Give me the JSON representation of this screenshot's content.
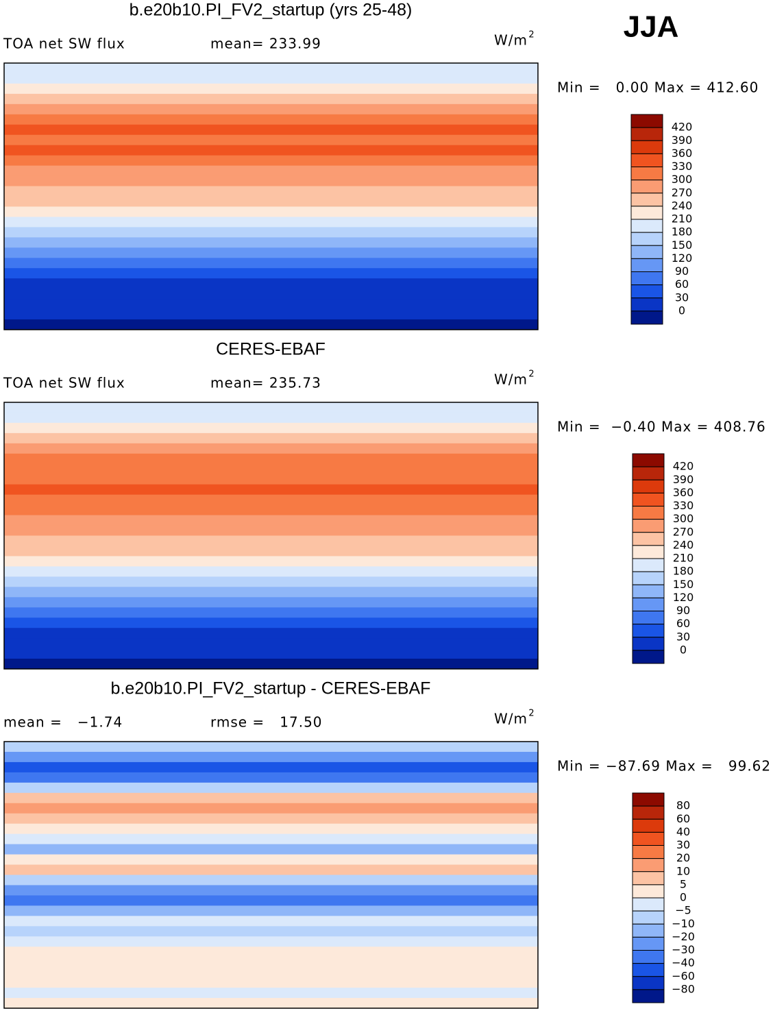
{
  "season": "JJA",
  "panels": [
    {
      "title": "b.e20b10.PI_FV2_startup (yrs 25-48)",
      "left": "TOA net SW flux",
      "center": "mean= 233.99",
      "units": "W/m",
      "units_exp": "2",
      "minmax": "Min =   0.00 Max = 412.60",
      "colorbar": {
        "labels": [
          "420",
          "390",
          "360",
          "330",
          "300",
          "270",
          "240",
          "210",
          "180",
          "150",
          "120",
          "90",
          "60",
          "30",
          "0"
        ],
        "colors": [
          "#8c0a00",
          "#b8260a",
          "#dc3a0c",
          "#f05420",
          "#f77a44",
          "#fa9c73",
          "#fcc3a4",
          "#fde9da",
          "#dbe9fb",
          "#b7d3fb",
          "#8fb6f8",
          "#6697f5",
          "#3f77f0",
          "#1a55e6",
          "#0a35c5",
          "#00188a"
        ]
      }
    },
    {
      "title": "CERES-EBAF",
      "left": "TOA net SW flux",
      "center": "mean= 235.73",
      "units": "W/m",
      "units_exp": "2",
      "minmax": "Min =  −0.40 Max = 408.76",
      "colorbar": {
        "labels": [
          "420",
          "390",
          "360",
          "330",
          "300",
          "270",
          "240",
          "210",
          "180",
          "150",
          "120",
          "90",
          "60",
          "30",
          "0"
        ],
        "colors": [
          "#8c0a00",
          "#b8260a",
          "#dc3a0c",
          "#f05420",
          "#f77a44",
          "#fa9c73",
          "#fcc3a4",
          "#fde9da",
          "#dbe9fb",
          "#b7d3fb",
          "#8fb6f8",
          "#6697f5",
          "#3f77f0",
          "#1a55e6",
          "#0a35c5",
          "#00188a"
        ]
      }
    },
    {
      "title": "b.e20b10.PI_FV2_startup - CERES-EBAF",
      "left": "mean =   −1.74",
      "center": "rmse =   17.50",
      "units": "W/m",
      "units_exp": "2",
      "minmax": "Min = −87.69 Max =   99.62",
      "colorbar": {
        "labels": [
          "80",
          "60",
          "40",
          "30",
          "20",
          "10",
          "5",
          "0",
          "−5",
          "−10",
          "−20",
          "−30",
          "−40",
          "−60",
          "−80"
        ],
        "colors": [
          "#8c0a00",
          "#b8260a",
          "#dc3a0c",
          "#f05420",
          "#f77a44",
          "#fa9c73",
          "#fcc3a4",
          "#fde9da",
          "#dbe9fb",
          "#b7d3fb",
          "#8fb6f8",
          "#6697f5",
          "#3f77f0",
          "#1a55e6",
          "#0a35c5",
          "#00188a"
        ]
      }
    }
  ]
}
